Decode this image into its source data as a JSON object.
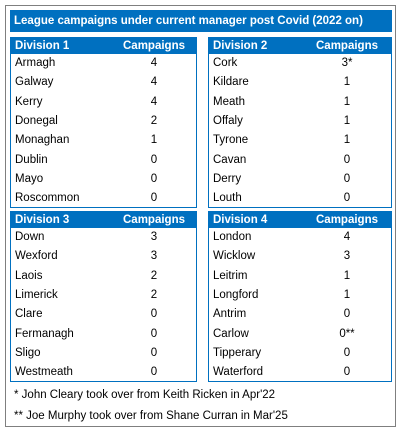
{
  "title": "League campaigns under current manager post Covid (2022 on)",
  "tables": [
    {
      "header": [
        "Division 1",
        "Campaigns"
      ],
      "rows": [
        [
          "Armagh",
          4
        ],
        [
          "Galway",
          4
        ],
        [
          "Kerry",
          4
        ],
        [
          "Donegal",
          2
        ],
        [
          "Monaghan",
          1
        ],
        [
          "Dublin",
          0
        ],
        [
          "Mayo",
          0
        ],
        [
          "Roscommon",
          0
        ]
      ]
    },
    {
      "header": [
        "Division 2",
        "Campaigns"
      ],
      "rows": [
        [
          "Cork",
          "3*"
        ],
        [
          "Kildare",
          1
        ],
        [
          "Meath",
          1
        ],
        [
          "Offaly",
          1
        ],
        [
          "Tyrone",
          1
        ],
        [
          "Cavan",
          0
        ],
        [
          "Derry",
          0
        ],
        [
          "Louth",
          0
        ]
      ]
    },
    {
      "header": [
        "Division 3",
        "Campaigns"
      ],
      "rows": [
        [
          "Down",
          3
        ],
        [
          "Wexford",
          3
        ],
        [
          "Laois",
          2
        ],
        [
          "Limerick",
          2
        ],
        [
          "Clare",
          0
        ],
        [
          "Fermanagh",
          0
        ],
        [
          "Sligo",
          0
        ],
        [
          "Westmeath",
          0
        ]
      ]
    },
    {
      "header": [
        "Division 4",
        "Campaigns"
      ],
      "rows": [
        [
          "London",
          4
        ],
        [
          "Wicklow",
          3
        ],
        [
          "Leitrim",
          1
        ],
        [
          "Longford",
          1
        ],
        [
          "Antrim",
          0
        ],
        [
          "Carlow",
          "0**"
        ],
        [
          "Tipperary",
          0
        ],
        [
          "Waterford",
          0
        ]
      ]
    }
  ],
  "footnotes": [
    "* John Cleary took over from Keith Ricken in Apr'22",
    "** Joe Murphy took over from Shane Curran in Mar'25"
  ]
}
